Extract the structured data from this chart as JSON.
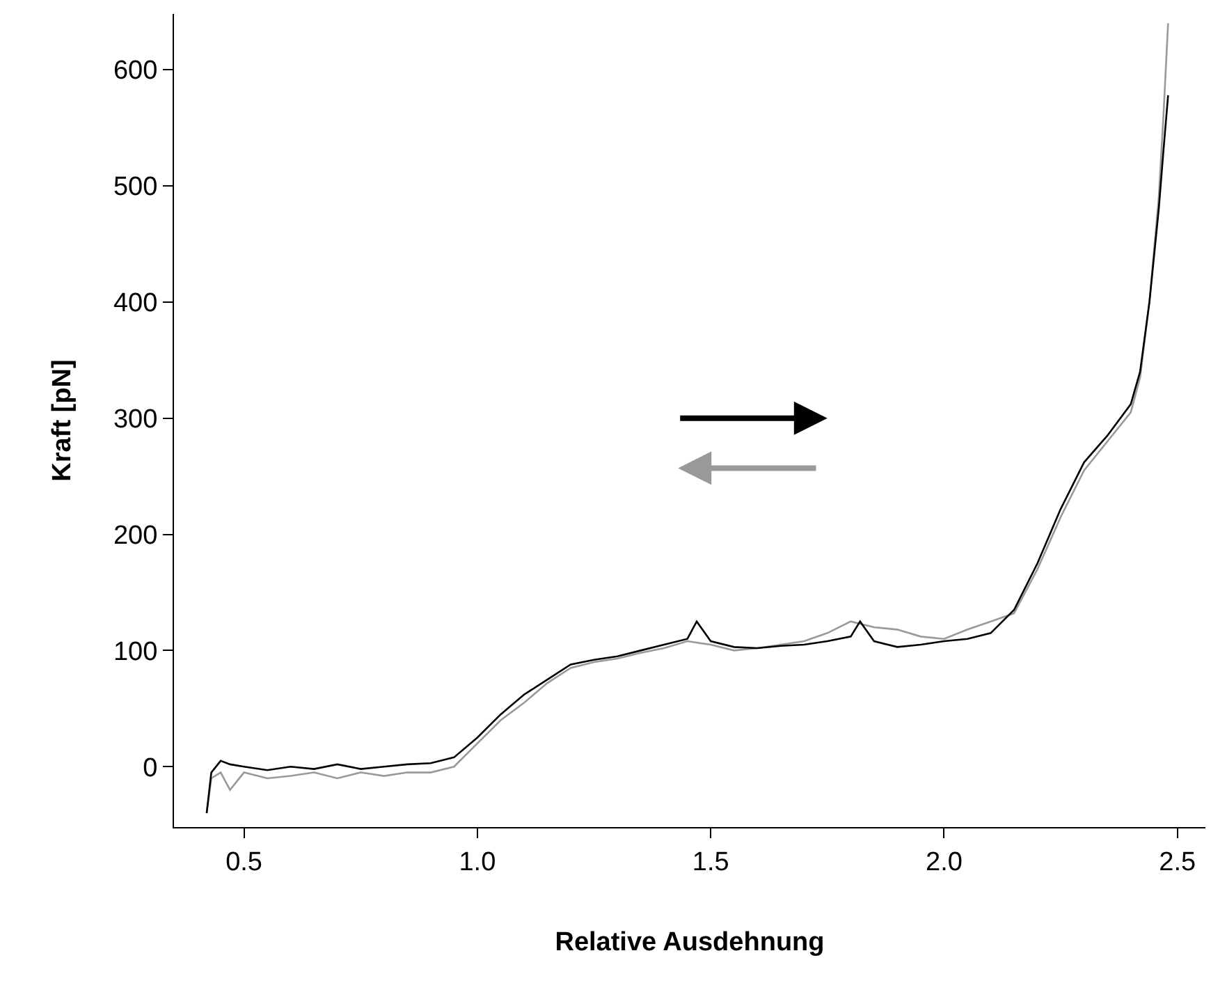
{
  "chart_data": {
    "type": "line",
    "xlabel": "Relative Ausdehnung",
    "ylabel": "Kraft [pN]",
    "xlim": [
      0.35,
      2.56
    ],
    "ylim": [
      -52,
      648
    ],
    "xticks": [
      {
        "value": 0.5,
        "label": "0.5"
      },
      {
        "value": 1.0,
        "label": "1.0"
      },
      {
        "value": 1.5,
        "label": "1.5"
      },
      {
        "value": 2.0,
        "label": "2.0"
      },
      {
        "value": 2.5,
        "label": "2.5"
      }
    ],
    "yticks": [
      0,
      100,
      200,
      300,
      400,
      500,
      600
    ],
    "marker": "none",
    "line_style": "solid",
    "series": [
      {
        "color": "#999999",
        "x": [
          0.42,
          0.43,
          0.45,
          0.47,
          0.5,
          0.55,
          0.6,
          0.65,
          0.7,
          0.75,
          0.8,
          0.85,
          0.9,
          0.95,
          1.0,
          1.05,
          1.1,
          1.15,
          1.2,
          1.25,
          1.3,
          1.35,
          1.4,
          1.45,
          1.5,
          1.55,
          1.6,
          1.65,
          1.7,
          1.75,
          1.8,
          1.85,
          1.9,
          1.95,
          2.0,
          2.05,
          2.1,
          2.15,
          2.2,
          2.25,
          2.3,
          2.35,
          2.4,
          2.42,
          2.44,
          2.46,
          2.47,
          2.48
        ],
        "values": [
          -40,
          -10,
          -5,
          -20,
          -5,
          -10,
          -8,
          -5,
          -10,
          -5,
          -8,
          -5,
          -5,
          0,
          20,
          40,
          55,
          72,
          85,
          90,
          93,
          98,
          102,
          108,
          105,
          100,
          102,
          105,
          108,
          115,
          125,
          120,
          118,
          112,
          110,
          118,
          125,
          132,
          170,
          215,
          255,
          280,
          305,
          335,
          400,
          490,
          560,
          640
        ]
      },
      {
        "color": "#000000",
        "x": [
          0.42,
          0.43,
          0.45,
          0.47,
          0.5,
          0.55,
          0.6,
          0.65,
          0.7,
          0.75,
          0.8,
          0.85,
          0.9,
          0.95,
          1.0,
          1.05,
          1.1,
          1.15,
          1.2,
          1.25,
          1.3,
          1.35,
          1.4,
          1.45,
          1.47,
          1.5,
          1.55,
          1.6,
          1.65,
          1.7,
          1.75,
          1.8,
          1.82,
          1.85,
          1.9,
          1.95,
          2.0,
          2.05,
          2.1,
          2.15,
          2.2,
          2.25,
          2.3,
          2.35,
          2.4,
          2.42,
          2.44,
          2.46,
          2.47,
          2.48
        ],
        "values": [
          -40,
          -5,
          5,
          2,
          0,
          -3,
          0,
          -2,
          2,
          -2,
          0,
          2,
          3,
          8,
          25,
          45,
          62,
          75,
          88,
          92,
          95,
          100,
          105,
          110,
          125,
          108,
          103,
          102,
          104,
          105,
          108,
          112,
          125,
          108,
          103,
          105,
          108,
          110,
          115,
          135,
          175,
          222,
          262,
          285,
          312,
          340,
          400,
          480,
          530,
          578
        ]
      }
    ]
  }
}
